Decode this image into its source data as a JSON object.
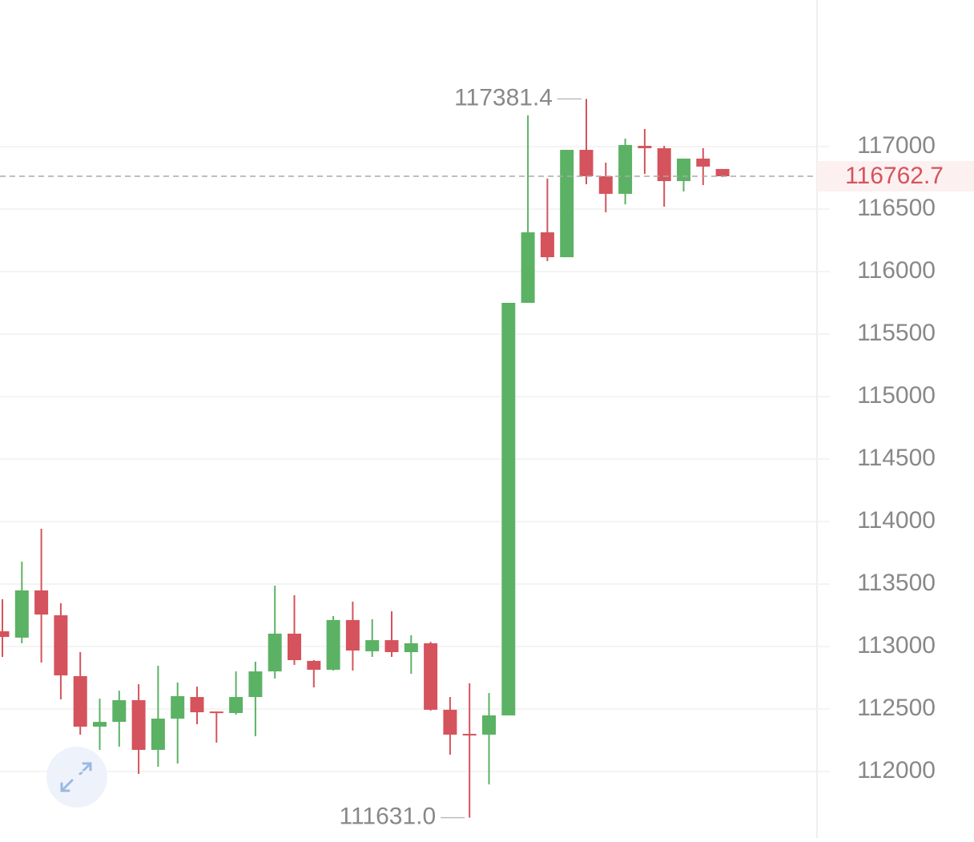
{
  "chart_data": {
    "type": "candlestick",
    "open": [
      113122,
      113071,
      113449,
      113250,
      112763,
      112359,
      112397,
      112571,
      112173,
      112423,
      112596,
      112480,
      112468,
      112596,
      112801,
      113103,
      112885,
      112814,
      113212,
      112962,
      113051,
      112955,
      113026,
      112494,
      112301,
      112295,
      112449,
      115750,
      116314,
      116115,
      116974,
      116763,
      116622,
      117006,
      116987,
      116724,
      116904,
      116821
    ],
    "high": [
      113378,
      113679,
      113942,
      113346,
      112955,
      112583,
      112647,
      112699,
      112846,
      112712,
      112679,
      112480,
      112801,
      112878,
      113487,
      113410,
      112891,
      113244,
      113359,
      113218,
      113282,
      113090,
      113038,
      112596,
      112705,
      112628,
      115750,
      117250,
      116744,
      116974,
      117381.4,
      116872,
      117064,
      117141,
      117006,
      116904,
      116987,
      116821
    ],
    "low": [
      112917,
      113026,
      112872,
      112577,
      112295,
      112173,
      112199,
      111981,
      112038,
      112064,
      112378,
      112231,
      112455,
      112282,
      112744,
      112853,
      112673,
      112808,
      112808,
      112917,
      112917,
      112782,
      112487,
      112135,
      111631,
      111897,
      112449,
      115750,
      116083,
      116115,
      116699,
      116474,
      116538,
      116782,
      116519,
      116641,
      116692,
      116756
    ],
    "close": [
      113077,
      113449,
      113256,
      112769,
      112359,
      112397,
      112571,
      112173,
      112423,
      112603,
      112474,
      112468,
      112596,
      112801,
      113103,
      112891,
      112814,
      113212,
      112968,
      113051,
      112955,
      113026,
      112494,
      112295,
      112295,
      112449,
      115750,
      116314,
      116115,
      116974,
      116763,
      116622,
      117013,
      116987,
      116724,
      116904,
      116840,
      116762.7
    ],
    "up_color": "#5bb264",
    "down_color": "#d5535c",
    "ylim": [
      111468,
      118173
    ],
    "yticks": [
      112000,
      112500,
      113000,
      113500,
      114000,
      114500,
      115000,
      115500,
      116000,
      116500,
      117000
    ],
    "grid": true,
    "last_price": 116762.7,
    "annotations": [
      {
        "value": 117381.4,
        "label": "117381.4"
      },
      {
        "value": 111631,
        "label": "111631.0"
      }
    ]
  }
}
